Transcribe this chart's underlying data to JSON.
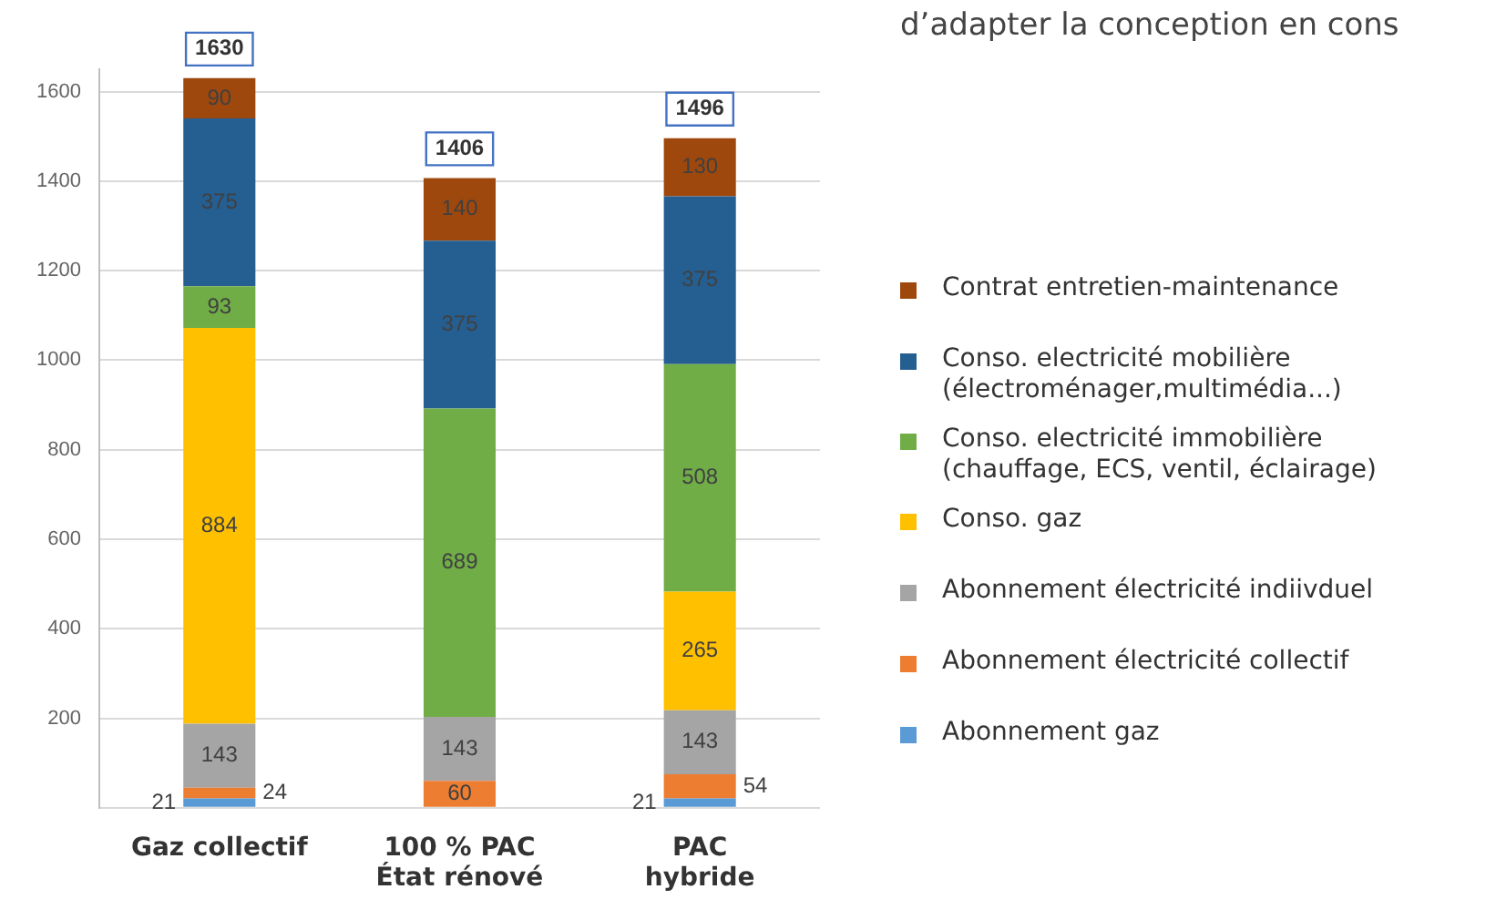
{
  "chart_data": {
    "type": "bar",
    "stacked": true,
    "categories": [
      "Gaz collectif",
      "100 % PAC\nÉtat rénové",
      "PAC\nhybride"
    ],
    "series": [
      {
        "name": "Abonnement gaz",
        "color": "#5b9bd5",
        "values": [
          21,
          null,
          21
        ]
      },
      {
        "name": "Abonnement électricité collectif",
        "color": "#ed7d31",
        "values": [
          24,
          60,
          54
        ]
      },
      {
        "name": "Abonnement électricité indiivduel",
        "color": "#a5a5a5",
        "values": [
          143,
          143,
          143
        ]
      },
      {
        "name": "Conso. gaz",
        "color": "#ffc000",
        "values": [
          884,
          null,
          265
        ]
      },
      {
        "name": "Conso. electricité  immobilière\n(chauffage, ECS, ventil, éclairage)",
        "color": "#70ad47",
        "values": [
          93,
          689,
          508
        ]
      },
      {
        "name": "Conso. electricité mobilière\n(électroménager,multimédia...)",
        "color": "#255e91",
        "values": [
          375,
          375,
          375
        ]
      },
      {
        "name": "Contrat entretien-maintenance",
        "color": "#9e480e",
        "values": [
          90,
          140,
          130
        ]
      }
    ],
    "ylim": [
      0,
      1650
    ],
    "yticks": [
      {
        "value": 0,
        "label": null
      },
      200,
      400,
      600,
      800,
      1000,
      1200,
      1400,
      1600
    ],
    "grid": "y",
    "data_labels": true,
    "totals": [
      "1630",
      "1406",
      "1496"
    ],
    "legend": "right",
    "annotations": [
      "d’adapter la conception en cons"
    ]
  }
}
